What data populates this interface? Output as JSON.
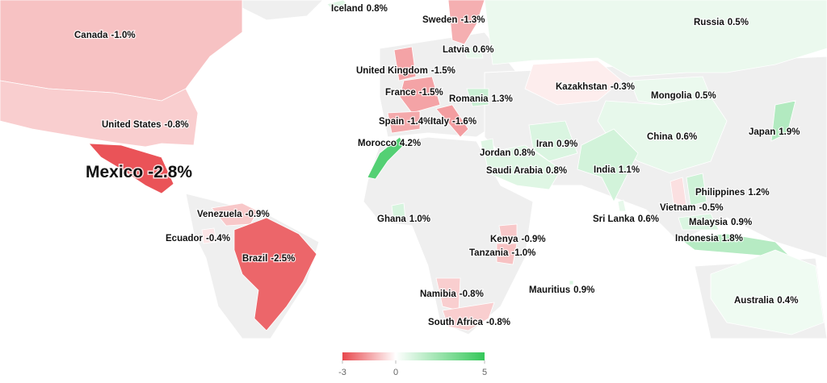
{
  "chart_data": {
    "type": "map",
    "regions": [
      {
        "name": "Canada",
        "value": -1.0,
        "value_label": "-1.0%"
      },
      {
        "name": "United States",
        "value": -0.8,
        "value_label": "-0.8%"
      },
      {
        "name": "Mexico",
        "value": -2.8,
        "value_label": "-2.8%"
      },
      {
        "name": "Venezuela",
        "value": -0.9,
        "value_label": "-0.9%"
      },
      {
        "name": "Ecuador",
        "value": -0.4,
        "value_label": "-0.4%"
      },
      {
        "name": "Brazil",
        "value": -2.5,
        "value_label": "-2.5%"
      },
      {
        "name": "Iceland",
        "value": 0.8,
        "value_label": "0.8%"
      },
      {
        "name": "Sweden",
        "value": -1.3,
        "value_label": "-1.3%"
      },
      {
        "name": "Latvia",
        "value": 0.6,
        "value_label": "0.6%"
      },
      {
        "name": "United Kingdom",
        "value": -1.5,
        "value_label": "-1.5%"
      },
      {
        "name": "France",
        "value": -1.5,
        "value_label": "-1.5%"
      },
      {
        "name": "Romania",
        "value": 1.3,
        "value_label": "1.3%"
      },
      {
        "name": "Spain",
        "value": -1.4,
        "value_label": "-1.4%"
      },
      {
        "name": "Italy",
        "value": -1.6,
        "value_label": "-1.6%"
      },
      {
        "name": "Morocco",
        "value": 4.2,
        "value_label": "4.2%"
      },
      {
        "name": "Russia",
        "value": 0.5,
        "value_label": "0.5%"
      },
      {
        "name": "Kazakhstan",
        "value": -0.3,
        "value_label": "-0.3%"
      },
      {
        "name": "Mongolia",
        "value": 0.5,
        "value_label": "0.5%"
      },
      {
        "name": "China",
        "value": 0.6,
        "value_label": "0.6%"
      },
      {
        "name": "Japan",
        "value": 1.9,
        "value_label": "1.9%"
      },
      {
        "name": "Iran",
        "value": 0.9,
        "value_label": "0.9%"
      },
      {
        "name": "Jordan",
        "value": 0.8,
        "value_label": "0.8%"
      },
      {
        "name": "Saudi Arabia",
        "value": 0.8,
        "value_label": "0.8%"
      },
      {
        "name": "India",
        "value": 1.1,
        "value_label": "1.1%"
      },
      {
        "name": "Philippines",
        "value": 1.2,
        "value_label": "1.2%"
      },
      {
        "name": "Vietnam",
        "value": -0.5,
        "value_label": "-0.5%"
      },
      {
        "name": "Sri Lanka",
        "value": 0.6,
        "value_label": "0.6%"
      },
      {
        "name": "Malaysia",
        "value": 0.9,
        "value_label": "0.9%"
      },
      {
        "name": "Indonesia",
        "value": 1.8,
        "value_label": "1.8%"
      },
      {
        "name": "Ghana",
        "value": 1.0,
        "value_label": "1.0%"
      },
      {
        "name": "Kenya",
        "value": -0.9,
        "value_label": "-0.9%"
      },
      {
        "name": "Tanzania",
        "value": -1.0,
        "value_label": "-1.0%"
      },
      {
        "name": "Mauritius",
        "value": 0.9,
        "value_label": "0.9%"
      },
      {
        "name": "Namibia",
        "value": -0.8,
        "value_label": "-0.8%"
      },
      {
        "name": "South Africa",
        "value": -0.8,
        "value_label": "-0.8%"
      },
      {
        "name": "Australia",
        "value": 0.4,
        "value_label": "0.4%"
      }
    ],
    "color_stops": [
      [
        -3,
        "#e8474c"
      ],
      [
        0,
        "#ffffff"
      ],
      [
        5,
        "#34c759"
      ]
    ],
    "colorbar_ticks": [
      -3,
      0,
      5
    ]
  }
}
